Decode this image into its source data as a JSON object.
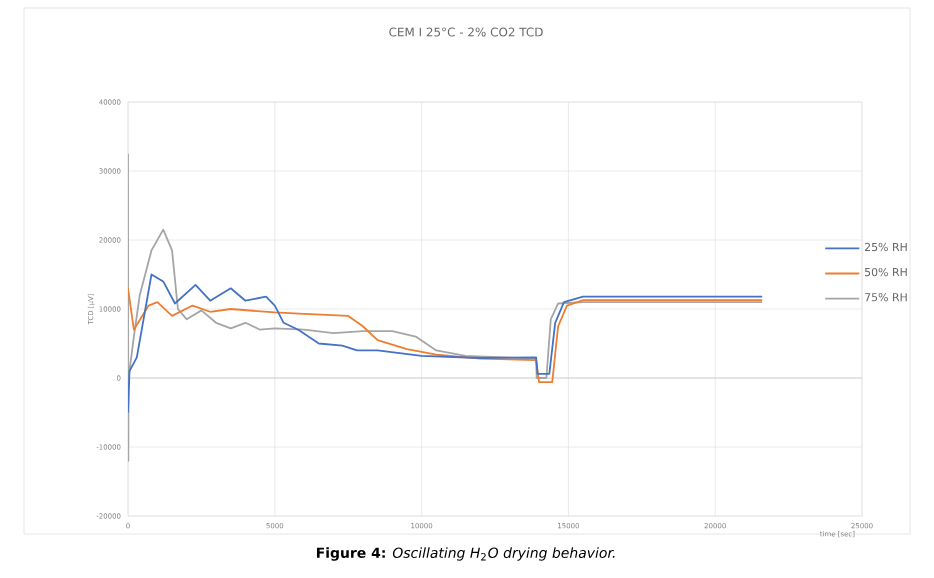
{
  "chart_data": {
    "type": "line",
    "title": "CEM I  25°C - 2% CO2 TCD",
    "xlabel": "time [sec]",
    "ylabel": "TCD [µV]",
    "annotations": [
      "**Figure 4:** *Oscillating H*$_{2}$*O drying behavior.*"
    ],
    "xlim": [
      0,
      25000
    ],
    "xticks": [
      0,
      5000,
      10000,
      15000,
      20000,
      25000
    ],
    "ylim": [
      -20000,
      40000
    ],
    "yticks": [
      -20000,
      -10000,
      0,
      10000,
      20000,
      30000,
      40000
    ],
    "grid": true,
    "legend": "right",
    "marker": "none",
    "line_style": "solid",
    "series": [
      {
        "name": "25% RH",
        "color": "#4472c4",
        "x": [
          0,
          50,
          300,
          800,
          1200,
          1600,
          2300,
          2800,
          3500,
          4000,
          4700,
          5000,
          5300,
          5800,
          6500,
          7300,
          7800,
          8500,
          10000,
          12000,
          13900,
          13950,
          14350,
          14550,
          14850,
          15500,
          21600
        ],
        "values": [
          -5000,
          1000,
          3000,
          15000,
          14000,
          10800,
          13500,
          11200,
          13000,
          11200,
          11800,
          10500,
          8000,
          7000,
          5000,
          4700,
          4000,
          4000,
          3200,
          2900,
          3000,
          600,
          600,
          8000,
          11000,
          11800,
          11800
        ]
      },
      {
        "name": "50% RH",
        "color": "#ed7d31",
        "x": [
          0,
          200,
          700,
          1000,
          1500,
          2200,
          2800,
          3500,
          5000,
          6000,
          7500,
          8000,
          8500,
          9500,
          10500,
          12000,
          13900,
          14000,
          14450,
          14650,
          14950,
          15500,
          21600
        ],
        "values": [
          13000,
          7000,
          10500,
          11000,
          9000,
          10500,
          9600,
          10000,
          9500,
          9300,
          9000,
          7500,
          5500,
          4200,
          3400,
          2800,
          2600,
          -600,
          -600,
          7500,
          10500,
          11300,
          11300
        ]
      },
      {
        "name": "75% RH",
        "color": "#a5a5a5",
        "x": [
          0,
          10,
          20,
          200,
          400,
          800,
          1200,
          1500,
          1700,
          2000,
          2500,
          3000,
          3500,
          4000,
          4500,
          5000,
          6000,
          7000,
          8000,
          9000,
          9800,
          10500,
          11500,
          13900,
          13920,
          14250,
          14400,
          14650,
          15500,
          21600
        ],
        "values": [
          32500,
          -12000,
          0,
          6000,
          12000,
          18500,
          21500,
          18500,
          10000,
          8500,
          9800,
          8000,
          7200,
          8000,
          7000,
          7200,
          7000,
          6500,
          6800,
          6800,
          6000,
          4000,
          3200,
          2800,
          0,
          0,
          8500,
          10800,
          11000,
          11000
        ]
      }
    ]
  }
}
